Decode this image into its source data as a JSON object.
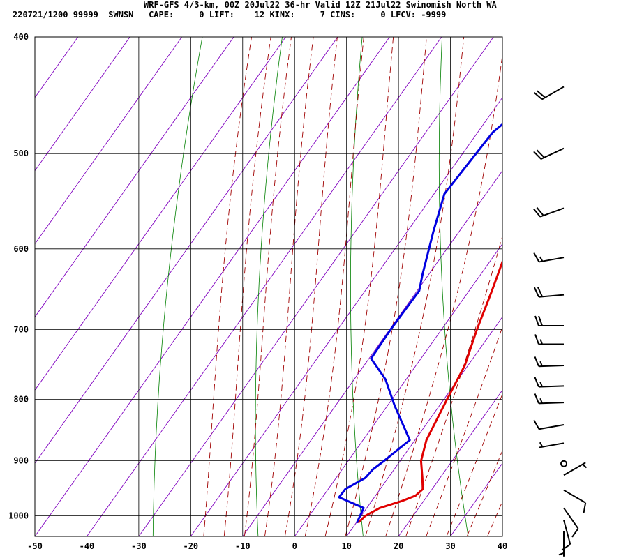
{
  "header": {
    "line1": "WRF-GFS 4/3-km, 00Z 20Jul22 36-hr Valid 12Z 21Jul22 Swinomish North WA",
    "line2": "220721/1200 99999  SWNSN   CAPE:     0 LIFT:    12 KINX:     7 CINS:     0 LFCV: -9999"
  },
  "chart_data": {
    "type": "line",
    "diagram": "skew-T log-p",
    "x_ticks": [
      -50,
      -40,
      -30,
      -20,
      -10,
      0,
      10,
      20,
      30,
      40
    ],
    "x_tick_labels": [
      "-50",
      "-40",
      "-30",
      "-20",
      "-10",
      "0",
      "10",
      "20",
      "30",
      "40"
    ],
    "y_ticks": [
      400,
      500,
      600,
      700,
      800,
      900,
      1000
    ],
    "y_tick_labels": [
      "400",
      "500",
      "600",
      "700",
      "800",
      "900",
      "1000"
    ],
    "pressure_range_hPa": [
      1040,
      400
    ],
    "temperature_range_C_at_bottom": [
      -50,
      40
    ],
    "grid": true,
    "colors": {
      "temperature": "#e00000",
      "dewpoint": "#0000e0",
      "isotherms": "#8000c0",
      "dry_adiabats": "#008000",
      "moist_adiabats": "#a00000",
      "grid": "#000000",
      "wind_barbs": "#000000"
    },
    "series": [
      {
        "key": "temperature",
        "points": [
          {
            "p": 1012,
            "t": 10.4
          },
          {
            "p": 1000,
            "t": 10.8
          },
          {
            "p": 985,
            "t": 12.5
          },
          {
            "p": 972,
            "t": 15.8
          },
          {
            "p": 962,
            "t": 17.7
          },
          {
            "p": 950,
            "t": 18.2
          },
          {
            "p": 930,
            "t": 16.6
          },
          {
            "p": 900,
            "t": 14.0
          },
          {
            "p": 865,
            "t": 12.2
          },
          {
            "p": 800,
            "t": 10.6
          },
          {
            "p": 750,
            "t": 9.4
          },
          {
            "p": 700,
            "t": 6.8
          },
          {
            "p": 650,
            "t": 4.4
          },
          {
            "p": 600,
            "t": 1.6
          },
          {
            "p": 550,
            "t": -1.1
          },
          {
            "p": 500,
            "t": -5.5
          },
          {
            "p": 450,
            "t": -10.0
          },
          {
            "p": 420,
            "t": -13.1
          }
        ]
      },
      {
        "key": "dewpoint",
        "points": [
          {
            "p": 1012,
            "t": 10.1
          },
          {
            "p": 1000,
            "t": 9.8
          },
          {
            "p": 985,
            "t": 9.4
          },
          {
            "p": 965,
            "t": 3.2
          },
          {
            "p": 950,
            "t": 3.3
          },
          {
            "p": 930,
            "t": 5.6
          },
          {
            "p": 915,
            "t": 5.9
          },
          {
            "p": 900,
            "t": 6.9
          },
          {
            "p": 865,
            "t": 9.0
          },
          {
            "p": 810,
            "t": 1.4
          },
          {
            "p": 770,
            "t": -4.0
          },
          {
            "p": 740,
            "t": -9.6
          },
          {
            "p": 700,
            "t": -9.8
          },
          {
            "p": 650,
            "t": -9.6
          },
          {
            "p": 630,
            "t": -11.2
          },
          {
            "p": 580,
            "t": -15.0
          },
          {
            "p": 540,
            "t": -18.0
          },
          {
            "p": 480,
            "t": -17.1
          },
          {
            "p": 420,
            "t": -10.5
          }
        ]
      }
    ],
    "wind_barbs": [
      {
        "p": 1030,
        "dir": 180,
        "speed": 5
      },
      {
        "p": 1008,
        "dir": 165,
        "speed": 10
      },
      {
        "p": 985,
        "dir": 145,
        "speed": 10
      },
      {
        "p": 952,
        "dir": 120,
        "speed": 10
      },
      {
        "p": 925,
        "dir": 60,
        "speed": 5
      },
      {
        "p": 905,
        "dir": 0,
        "speed": 0
      },
      {
        "p": 870,
        "dir": 260,
        "speed": 5
      },
      {
        "p": 840,
        "dir": 260,
        "speed": 10
      },
      {
        "p": 805,
        "dir": 268,
        "speed": 15
      },
      {
        "p": 780,
        "dir": 268,
        "speed": 15
      },
      {
        "p": 750,
        "dir": 268,
        "speed": 15
      },
      {
        "p": 720,
        "dir": 270,
        "speed": 15
      },
      {
        "p": 695,
        "dir": 270,
        "speed": 20
      },
      {
        "p": 655,
        "dir": 265,
        "speed": 20
      },
      {
        "p": 610,
        "dir": 260,
        "speed": 15
      },
      {
        "p": 555,
        "dir": 250,
        "speed": 20
      },
      {
        "p": 495,
        "dir": 245,
        "speed": 20
      },
      {
        "p": 440,
        "dir": 240,
        "speed": 20
      }
    ]
  }
}
